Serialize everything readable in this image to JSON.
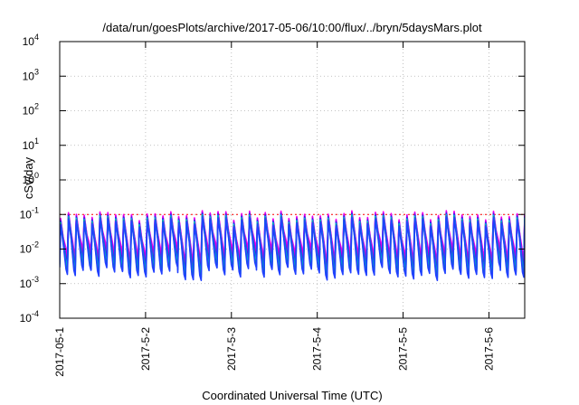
{
  "chart_data": {
    "type": "line",
    "title": "/data/run/goesPlots/archive/2017-05-06/10:00/flux/../bryn/5daysMars.plot",
    "xlabel": "Coordinated Universal Time (UTC)",
    "ylabel": "cSv/day",
    "x_tick_labels": [
      "2017-05-1",
      "2017-5-2",
      "2017-5-3",
      "2017-5-4",
      "2017-5-5",
      "2017-5-6"
    ],
    "y_tick_labels": [
      {
        "base": "10",
        "exp": "-4"
      },
      {
        "base": "10",
        "exp": "-3"
      },
      {
        "base": "10",
        "exp": "-2"
      },
      {
        "base": "10",
        "exp": "-1"
      },
      {
        "base": "10",
        "exp": "0"
      },
      {
        "base": "10",
        "exp": "1"
      },
      {
        "base": "10",
        "exp": "2"
      },
      {
        "base": "10",
        "exp": "3"
      },
      {
        "base": "10",
        "exp": "4"
      }
    ],
    "xlim": [
      "2017-05-01",
      "2017-05-06 10:00"
    ],
    "ylim": [
      0.0001,
      10000
    ],
    "yscale": "log",
    "grid": true,
    "reference_line": {
      "value": 0.1,
      "color": "#ff0000",
      "style": "dotted"
    },
    "series_colors": [
      "#ff00ff",
      "#dd00dd",
      "#c000ff",
      "#6a00d0",
      "#0050ff",
      "#00c8d0",
      "#009a9a",
      "#2040ff"
    ],
    "oscillation_period_hours": 2.2,
    "envelope": {
      "peak_max": 0.13,
      "peak_min": 0.03,
      "trough_min": 0.0008
    }
  }
}
